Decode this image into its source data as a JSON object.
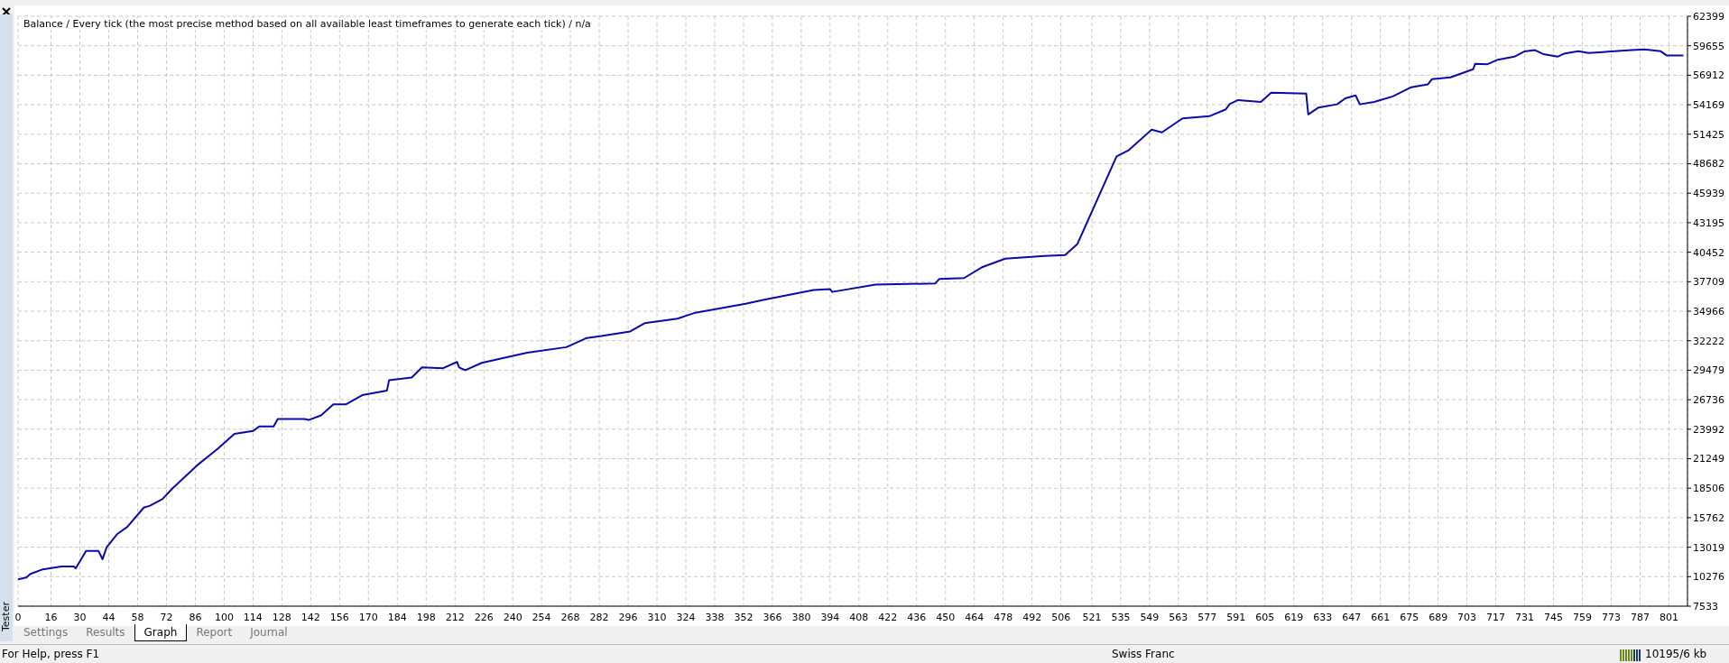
{
  "chart_data": {
    "type": "line",
    "title": "Balance / Every tick (the most precise method based on all available least timeframes to generate each tick) / n/a",
    "x": [
      0,
      4,
      6,
      12,
      21,
      27,
      28,
      33,
      39,
      41,
      43,
      48,
      53,
      61,
      64,
      70,
      75,
      87,
      97,
      105,
      114,
      117,
      124,
      126,
      139,
      141,
      147,
      153,
      159,
      167,
      179,
      180,
      191,
      196,
      206,
      213,
      214,
      217,
      225,
      247,
      266,
      276,
      283,
      297,
      304,
      320,
      328,
      353,
      361,
      386,
      394,
      395,
      416,
      445,
      447,
      459,
      468,
      479,
      498,
      508,
      514,
      533,
      539,
      550,
      555,
      565,
      578,
      586,
      588,
      592,
      603,
      608,
      625,
      626,
      631,
      640,
      644,
      649,
      651,
      658,
      667,
      676,
      684,
      686,
      695,
      699,
      706,
      707,
      713,
      718,
      726,
      731,
      736,
      740,
      747,
      750,
      757,
      762,
      783,
      789,
      797,
      800,
      808
    ],
    "series": [
      {
        "color": "#0a0aa8",
        "values": [
          10020,
          10190,
          10530,
          10960,
          11220,
          11220,
          11050,
          12680,
          12680,
          11900,
          13020,
          14220,
          14900,
          16700,
          16880,
          17480,
          18500,
          20650,
          22190,
          23560,
          23820,
          24250,
          24250,
          24940,
          24940,
          24850,
          25280,
          26300,
          26300,
          27160,
          27590,
          28540,
          28800,
          29740,
          29650,
          30250,
          29740,
          29480,
          30160,
          31110,
          31620,
          32480,
          32650,
          33080,
          33850,
          34280,
          34790,
          35650,
          35990,
          36940,
          37020,
          36760,
          37450,
          37540,
          37970,
          38050,
          39080,
          39850,
          40110,
          40190,
          41220,
          49360,
          49960,
          51850,
          51600,
          52900,
          53100,
          53740,
          54250,
          54600,
          54420,
          55280,
          55200,
          53270,
          53910,
          54210,
          54770,
          55030,
          54210,
          54430,
          54940,
          55800,
          56060,
          56540,
          56710,
          56990,
          57470,
          57980,
          57940,
          58360,
          58640,
          59130,
          59250,
          58880,
          58640,
          58910,
          59140,
          58980,
          59250,
          59320,
          59140,
          58740,
          58740
        ]
      }
    ],
    "xlim": [
      0,
      810
    ],
    "xticks": [
      0,
      16,
      30,
      44,
      58,
      72,
      86,
      100,
      114,
      128,
      142,
      156,
      170,
      184,
      198,
      212,
      226,
      240,
      254,
      268,
      282,
      296,
      310,
      324,
      338,
      352,
      366,
      380,
      394,
      408,
      422,
      436,
      450,
      464,
      478,
      492,
      506,
      521,
      535,
      549,
      563,
      577,
      591,
      605,
      619,
      633,
      647,
      661,
      675,
      689,
      703,
      717,
      731,
      745,
      759,
      773,
      787,
      801
    ],
    "ylim": [
      7533,
      62399
    ],
    "yticks": [
      7533,
      10276,
      13019,
      15762,
      18506,
      21249,
      23992,
      26736,
      29479,
      32222,
      34966,
      37709,
      40452,
      43195,
      45939,
      48682,
      51425,
      54169,
      56912,
      59655,
      62399
    ],
    "grid": true,
    "legend": false,
    "marker": "none",
    "line_style": "solid",
    "annotations": [
      "Settings",
      "Results",
      "Graph",
      "Report",
      "Journal",
      "Tester",
      "For Help, press F1",
      "Swiss Franc",
      "10195/6 kb"
    ]
  }
}
